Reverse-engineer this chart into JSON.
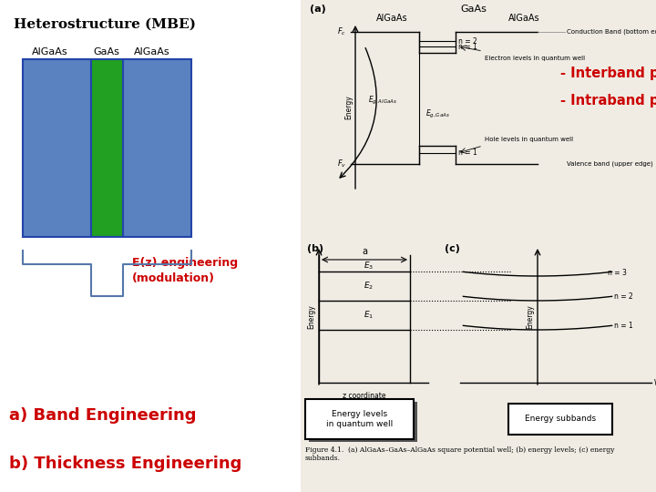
{
  "title": "Heterostructure (MBE)",
  "label_AlGaAs1": "AlGaAs",
  "label_GaAs": "GaAs",
  "label_AlGaAs2": "AlGaAs",
  "color_AlGaAs": "#5b82c0",
  "color_GaAs": "#22a022",
  "color_outline": "#2244aa",
  "Ez_text": "E(z) engineering\n(modulation)",
  "Ez_text_color": "#cc0000",
  "interband_line1": "- Interband processes",
  "interband_line2": "- Intraband processes",
  "interband_text_color": "#cc0000",
  "bottom_text1": "a) Band Engineering",
  "bottom_text2": "b) Thickness Engineering",
  "bottom_text_color": "#cc0000",
  "bg_color": "#ffffff",
  "right_bg": "#f0ece4"
}
